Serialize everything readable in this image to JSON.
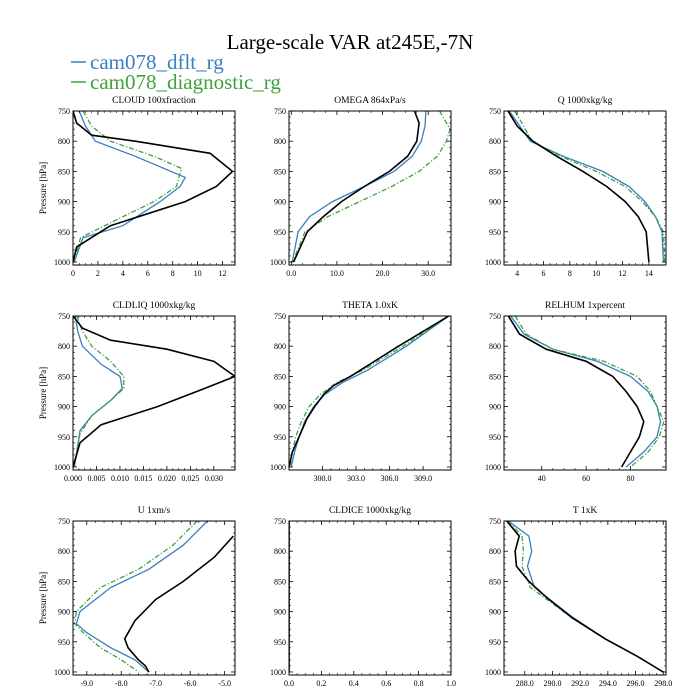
{
  "figure": {
    "title": "Large-scale VAR at245E,-7N",
    "legend": [
      {
        "name": "cam078_dflt_rg",
        "color": "#3a7fc1",
        "dash": "solid"
      },
      {
        "name": "cam078_diagnostic_rg",
        "color": "#3fa13f",
        "dash": "dashdot"
      }
    ],
    "reference_color": "#000000"
  },
  "chart_data": [
    {
      "type": "line",
      "title": "CLOUD 100xfraction",
      "ylabel": "Pressure [hPa]",
      "xlim": [
        0,
        13
      ],
      "ylim": [
        1005,
        750
      ],
      "xticks": [
        0,
        2,
        4,
        6,
        8,
        10,
        12
      ],
      "xtick_labels": [
        "0",
        "2",
        "4",
        "6",
        "8",
        "10",
        "12"
      ],
      "yticks": [
        750,
        800,
        850,
        900,
        950,
        1000
      ],
      "ytick_labels": [
        "750",
        "800",
        "850",
        "900",
        "950",
        "1000"
      ],
      "series": [
        {
          "name": "cam078_dflt_rg",
          "x": [
            0.5,
            1.0,
            1.8,
            5.0,
            9.0,
            8.6,
            7.0,
            4.0,
            0.8,
            0.1
          ],
          "y": [
            750,
            775,
            800,
            825,
            860,
            875,
            900,
            940,
            960,
            1000
          ]
        },
        {
          "name": "cam078_diagnostic_rg",
          "x": [
            0.8,
            1.5,
            3.0,
            6.5,
            8.7,
            8.3,
            6.5,
            3.5,
            0.6,
            0.1
          ],
          "y": [
            750,
            775,
            800,
            825,
            845,
            875,
            900,
            930,
            960,
            1000
          ]
        },
        {
          "name": "reference",
          "x": [
            0,
            0.3,
            1.5,
            5,
            11,
            12.8,
            11.5,
            9,
            3,
            0.3,
            0
          ],
          "y": [
            750,
            770,
            790,
            800,
            820,
            850,
            875,
            900,
            940,
            975,
            1000
          ]
        }
      ]
    },
    {
      "type": "line",
      "title": "OMEGA 864xPa/s",
      "ylabel": "",
      "xlim": [
        -0.5,
        35
      ],
      "ylim": [
        1005,
        750
      ],
      "xticks": [
        0,
        10,
        20,
        30
      ],
      "xtick_labels": [
        "0.0",
        "10.0",
        "20.0",
        "30.0"
      ],
      "yticks": [
        750,
        800,
        850,
        900,
        950,
        1000
      ],
      "ytick_labels": [
        "750",
        "800",
        "850",
        "900",
        "950",
        "1000"
      ],
      "series": [
        {
          "name": "cam078_dflt_rg",
          "x": [
            29.5,
            29.3,
            28.5,
            26.5,
            22.5,
            16.0,
            9.0,
            4.0,
            1.5,
            0.2
          ],
          "y": [
            750,
            775,
            800,
            825,
            850,
            875,
            900,
            925,
            950,
            1000
          ]
        },
        {
          "name": "cam078_diagnostic_rg",
          "x": [
            32.5,
            34.8,
            34.0,
            32.0,
            28.0,
            22.0,
            15.0,
            8.0,
            3.0,
            0.3
          ],
          "y": [
            750,
            780,
            800,
            825,
            850,
            875,
            900,
            925,
            950,
            1000
          ]
        },
        {
          "name": "reference",
          "x": [
            27.0,
            28.0,
            27.5,
            25.5,
            21.5,
            16.0,
            11.0,
            7.0,
            3.5,
            0.5
          ],
          "y": [
            750,
            770,
            800,
            825,
            850,
            875,
            900,
            925,
            950,
            1000
          ]
        }
      ]
    },
    {
      "type": "line",
      "title": "Q 1000xkg/kg",
      "ylabel": "",
      "xlim": [
        3,
        15.3
      ],
      "ylim": [
        1005,
        750
      ],
      "xticks": [
        4,
        6,
        8,
        10,
        12,
        14
      ],
      "xtick_labels": [
        "4",
        "6",
        "8",
        "10",
        "12",
        "14"
      ],
      "yticks": [
        750,
        800,
        850,
        900,
        950,
        1000
      ],
      "ytick_labels": [
        "750",
        "800",
        "850",
        "900",
        "950",
        "1000"
      ],
      "series": [
        {
          "name": "cam078_dflt_rg",
          "x": [
            3.4,
            4.2,
            5.0,
            7.5,
            10.5,
            12.5,
            13.7,
            14.5,
            15.0,
            15.1
          ],
          "y": [
            750,
            775,
            800,
            825,
            850,
            875,
            900,
            925,
            950,
            1000
          ]
        },
        {
          "name": "cam078_diagnostic_rg",
          "x": [
            3.8,
            4.5,
            5.1,
            7.3,
            10.0,
            12.2,
            13.5,
            14.5,
            15.1,
            15.2
          ],
          "y": [
            750,
            775,
            800,
            825,
            850,
            875,
            900,
            925,
            950,
            1000
          ]
        },
        {
          "name": "reference",
          "x": [
            3.3,
            4.0,
            5.2,
            7.0,
            9.0,
            10.8,
            12.2,
            13.2,
            13.8,
            14.0
          ],
          "y": [
            750,
            775,
            800,
            825,
            850,
            875,
            900,
            925,
            950,
            1000
          ]
        }
      ]
    },
    {
      "type": "line",
      "title": "CLDLIQ 1000xkg/kg",
      "ylabel": "Pressure [hPa]",
      "xlim": [
        0,
        0.0345
      ],
      "ylim": [
        1005,
        750
      ],
      "xticks": [
        0,
        0.005,
        0.01,
        0.015,
        0.02,
        0.025,
        0.03
      ],
      "xtick_labels": [
        "0.000",
        "0.005",
        "0.010",
        "0.015",
        "0.020",
        "0.025",
        "0.030"
      ],
      "yticks": [
        750,
        800,
        850,
        900,
        950,
        1000
      ],
      "ytick_labels": [
        "750",
        "800",
        "850",
        "900",
        "950",
        "1000"
      ],
      "series": [
        {
          "name": "cam078_dflt_rg",
          "x": [
            0.0005,
            0.001,
            0.002,
            0.006,
            0.01,
            0.0105,
            0.008,
            0.004,
            0.0015,
            0.0003
          ],
          "y": [
            750,
            775,
            800,
            830,
            850,
            870,
            890,
            915,
            940,
            1000
          ]
        },
        {
          "name": "cam078_diagnostic_rg",
          "x": [
            0.0008,
            0.002,
            0.004,
            0.008,
            0.0108,
            0.0108,
            0.008,
            0.004,
            0.0015,
            0.0003
          ],
          "y": [
            750,
            775,
            800,
            825,
            850,
            870,
            890,
            915,
            945,
            1000
          ]
        },
        {
          "name": "reference",
          "x": [
            0.0,
            0.002,
            0.008,
            0.02,
            0.03,
            0.0345,
            0.028,
            0.018,
            0.006,
            0.0015,
            0.0
          ],
          "y": [
            750,
            770,
            790,
            805,
            825,
            850,
            870,
            900,
            930,
            960,
            1000
          ]
        }
      ]
    },
    {
      "type": "line",
      "title": "THETA 1.0xK",
      "ylabel": "",
      "xlim": [
        297,
        311.5
      ],
      "ylim": [
        1005,
        750
      ],
      "xticks": [
        300,
        303,
        306,
        309
      ],
      "xtick_labels": [
        "300.0",
        "303.0",
        "306.0",
        "309.0"
      ],
      "yticks": [
        750,
        800,
        850,
        900,
        950,
        1000
      ],
      "ytick_labels": [
        "750",
        "800",
        "850",
        "900",
        "950",
        "1000"
      ],
      "series": [
        {
          "name": "cam078_dflt_rg",
          "x": [
            311.3,
            307.5,
            304.0,
            301.8,
            300.2,
            299.2,
            298.4,
            297.9,
            297.5,
            297.2
          ],
          "y": [
            750,
            800,
            840,
            860,
            880,
            900,
            925,
            950,
            975,
            1000
          ]
        },
        {
          "name": "cam078_diagnostic_rg",
          "x": [
            311.3,
            307.2,
            303.6,
            301.3,
            299.8,
            298.8,
            298.1,
            297.6,
            297.3,
            297.1
          ],
          "y": [
            750,
            800,
            840,
            860,
            880,
            900,
            925,
            950,
            975,
            1000
          ]
        },
        {
          "name": "reference",
          "x": [
            311.3,
            306.8,
            302.5,
            301.0,
            300.1,
            299.3,
            298.6,
            297.9,
            297.3,
            297.0
          ],
          "y": [
            750,
            800,
            850,
            865,
            880,
            900,
            920,
            950,
            975,
            1000
          ]
        }
      ]
    },
    {
      "type": "line",
      "title": "RELHUM 1xpercent",
      "ylabel": "",
      "xlim": [
        23,
        96
      ],
      "ylim": [
        1005,
        750
      ],
      "xticks": [
        40,
        60,
        80
      ],
      "xtick_labels": [
        "40",
        "60",
        "80"
      ],
      "yticks": [
        750,
        800,
        850,
        900,
        950,
        1000
      ],
      "ytick_labels": [
        "750",
        "800",
        "850",
        "900",
        "950",
        "1000"
      ],
      "series": [
        {
          "name": "cam078_dflt_rg",
          "x": [
            26,
            32,
            45,
            65,
            80,
            88,
            92,
            93.5,
            92,
            86,
            78
          ],
          "y": [
            750,
            780,
            805,
            825,
            850,
            875,
            900,
            925,
            950,
            975,
            1000
          ]
        },
        {
          "name": "cam078_diagnostic_rg",
          "x": [
            28,
            33,
            45,
            68,
            83,
            89,
            92,
            95,
            93,
            88,
            80
          ],
          "y": [
            750,
            780,
            805,
            825,
            850,
            875,
            900,
            925,
            950,
            975,
            1000
          ]
        },
        {
          "name": "reference",
          "x": [
            25,
            30,
            42,
            60,
            72,
            78,
            83,
            86,
            84,
            80,
            76
          ],
          "y": [
            750,
            780,
            805,
            825,
            850,
            875,
            900,
            925,
            950,
            975,
            1000
          ]
        }
      ]
    },
    {
      "type": "line",
      "title": "U 1xm/s",
      "ylabel": "Pressure [hPa]",
      "xlim": [
        -9.4,
        -4.7
      ],
      "ylim": [
        1005,
        750
      ],
      "xticks": [
        -9,
        -8,
        -7,
        -6,
        -5
      ],
      "xtick_labels": [
        "-9.0",
        "-8.0",
        "-7.0",
        "-6.0",
        "-5.0"
      ],
      "yticks": [
        750,
        800,
        850,
        900,
        950,
        1000
      ],
      "ytick_labels": [
        "750",
        "800",
        "850",
        "900",
        "950",
        "1000"
      ],
      "series": [
        {
          "name": "cam078_dflt_rg",
          "x": [
            -5.5,
            -6.2,
            -7.2,
            -8.3,
            -9.2,
            -9.3,
            -9.0,
            -8.3,
            -7.6,
            -7.2
          ],
          "y": [
            750,
            790,
            830,
            860,
            900,
            920,
            935,
            960,
            980,
            1000
          ]
        },
        {
          "name": "cam078_diagnostic_rg",
          "x": [
            -5.8,
            -6.5,
            -7.5,
            -8.6,
            -9.3,
            -9.35,
            -9.1,
            -8.6,
            -8.0,
            -7.5
          ],
          "y": [
            750,
            790,
            830,
            860,
            900,
            920,
            935,
            960,
            980,
            1000
          ]
        },
        {
          "name": "reference",
          "x": [
            -4.75,
            -5.3,
            -6.2,
            -7.0,
            -7.6,
            -7.9,
            -7.8,
            -7.5,
            -7.3,
            -7.2
          ],
          "y": [
            775,
            810,
            850,
            880,
            915,
            945,
            960,
            980,
            990,
            1000
          ]
        }
      ]
    },
    {
      "type": "line",
      "title": "CLDICE 1000xkg/kg",
      "ylabel": "",
      "xlim": [
        0,
        1
      ],
      "ylim": [
        1005,
        750
      ],
      "xticks": [
        0,
        0.2,
        0.4,
        0.6,
        0.8,
        1.0
      ],
      "xtick_labels": [
        "0.0",
        "0.2",
        "0.4",
        "0.6",
        "0.8",
        "1.0"
      ],
      "yticks": [
        750,
        800,
        850,
        900,
        950,
        1000
      ],
      "ytick_labels": [
        "750",
        "800",
        "850",
        "900",
        "950",
        "1000"
      ],
      "series": [
        {
          "name": "cam078_dflt_rg",
          "x": [
            0,
            0
          ],
          "y": [
            750,
            1000
          ]
        },
        {
          "name": "cam078_diagnostic_rg",
          "x": [
            0,
            0
          ],
          "y": [
            750,
            1000
          ]
        },
        {
          "name": "reference",
          "x": [
            0,
            0
          ],
          "y": [
            750,
            1000
          ]
        }
      ]
    },
    {
      "type": "line",
      "title": "T 1xK",
      "ylabel": "",
      "xlim": [
        286.5,
        298.2
      ],
      "ylim": [
        1005,
        750
      ],
      "xticks": [
        288,
        290,
        292,
        294,
        296,
        298
      ],
      "xtick_labels": [
        "288.0",
        "290.0",
        "292.0",
        "294.0",
        "296.0",
        "298.0"
      ],
      "yticks": [
        750,
        800,
        850,
        900,
        950,
        1000
      ],
      "ytick_labels": [
        "750",
        "800",
        "850",
        "900",
        "950",
        "1000"
      ],
      "series": [
        {
          "name": "cam078_dflt_rg",
          "x": [
            286.8,
            288.3,
            288.5,
            288.2,
            288.7,
            289.8,
            291.5,
            293.8,
            296.2,
            298.0
          ],
          "y": [
            750,
            775,
            800,
            825,
            860,
            880,
            910,
            945,
            975,
            1000
          ]
        },
        {
          "name": "cam078_diagnostic_rg",
          "x": [
            286.8,
            287.8,
            287.9,
            287.8,
            288.4,
            289.6,
            291.4,
            293.8,
            296.2,
            298.0
          ],
          "y": [
            750,
            775,
            800,
            825,
            860,
            880,
            910,
            945,
            975,
            1000
          ]
        },
        {
          "name": "reference",
          "x": [
            286.7,
            287.6,
            287.3,
            287.4,
            288.3,
            289.5,
            291.4,
            293.8,
            296.2,
            298.0
          ],
          "y": [
            750,
            775,
            800,
            825,
            850,
            875,
            910,
            945,
            975,
            1000
          ]
        }
      ]
    }
  ]
}
